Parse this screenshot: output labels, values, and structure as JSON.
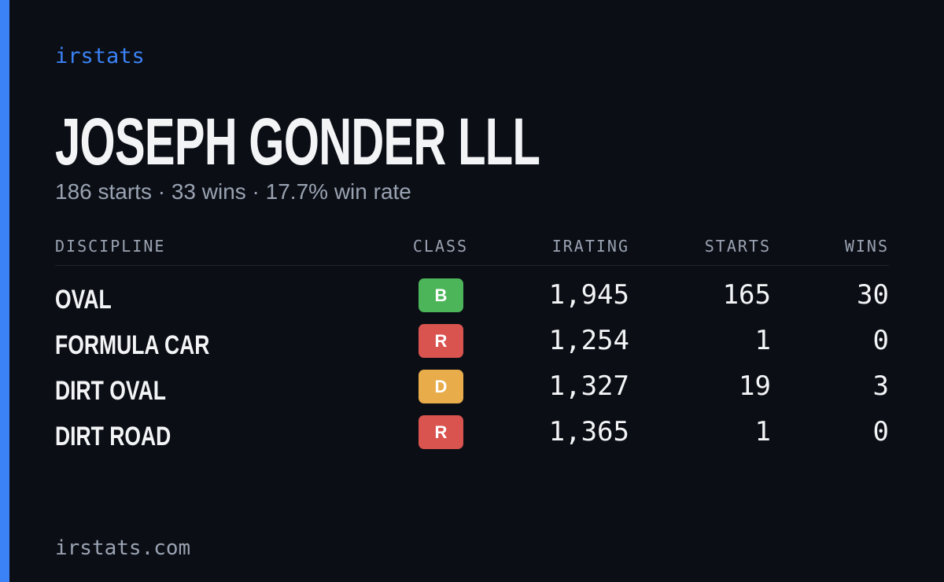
{
  "brand": "irstats",
  "title": "JOSEPH GONDER LLL",
  "subtitle": "186 starts · 33 wins · 17.7% win rate",
  "table": {
    "headers": [
      "DISCIPLINE",
      "CLASS",
      "IRATING",
      "STARTS",
      "WINS"
    ],
    "rows": [
      {
        "discipline": "OVAL",
        "class": "B",
        "class_color": "#4cb55a",
        "irating": "1,945",
        "starts": "165",
        "wins": "30"
      },
      {
        "discipline": "FORMULA CAR",
        "class": "R",
        "class_color": "#d9534f",
        "irating": "1,254",
        "starts": "1",
        "wins": "0"
      },
      {
        "discipline": "DIRT OVAL",
        "class": "D",
        "class_color": "#e8ac4a",
        "irating": "1,327",
        "starts": "19",
        "wins": "3"
      },
      {
        "discipline": "DIRT ROAD",
        "class": "R",
        "class_color": "#d9534f",
        "irating": "1,365",
        "starts": "1",
        "wins": "0"
      }
    ]
  },
  "footer": "irstats.com"
}
